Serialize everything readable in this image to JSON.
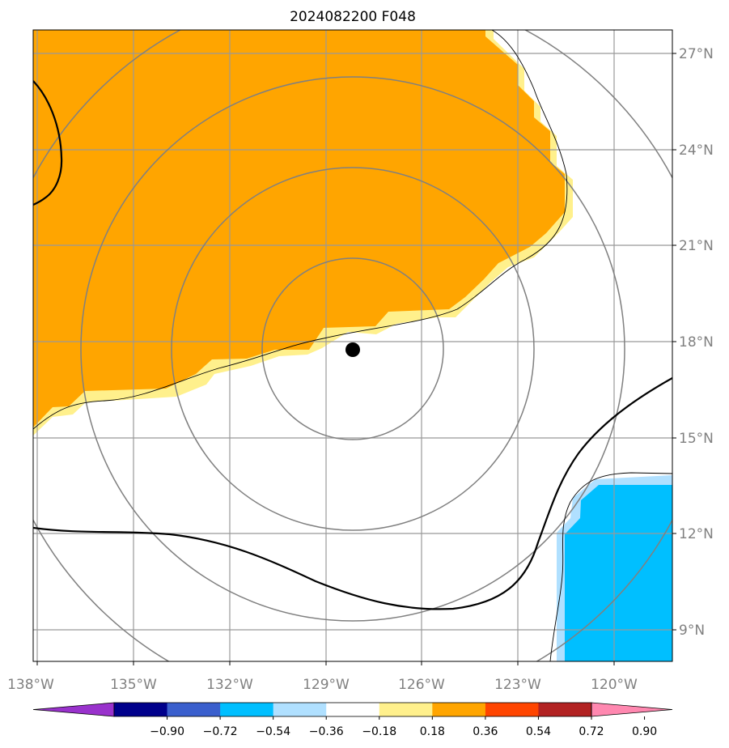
{
  "title": "2024082200 F048",
  "map": {
    "lon_ticks": [
      "138°W",
      "135°W",
      "132°W",
      "129°W",
      "126°W",
      "123°W",
      "120°W"
    ],
    "lat_ticks": [
      "27°N",
      "24°N",
      "21°N",
      "18°N",
      "15°N",
      "12°N",
      "9°N"
    ],
    "lon_range": [
      -138.1,
      -118.2
    ],
    "lat_range": [
      7.8,
      27.7
    ],
    "center_marker": {
      "lon": -128.1,
      "lat": 17.7
    },
    "range_rings_count": 4,
    "colors": {
      "positive_strong": "#ffa500",
      "positive_weak": "#fff08c",
      "negative_strong": "#00bfff",
      "negative_weak": "#b0e0ff",
      "contour": "#000000",
      "grid": "#808080"
    }
  },
  "colorbar": {
    "tick_labels": [
      "−0.90",
      "−0.72",
      "−0.54",
      "−0.36",
      "−0.18",
      "0.18",
      "0.36",
      "0.54",
      "0.72",
      "0.90"
    ],
    "colors": [
      "#9932cc",
      "#00008b",
      "#3a5fcd",
      "#00bfff",
      "#b0e0ff",
      "#ffffff",
      "#fff08c",
      "#ffa500",
      "#ff4500",
      "#b22222",
      "#ff88b0"
    ]
  }
}
